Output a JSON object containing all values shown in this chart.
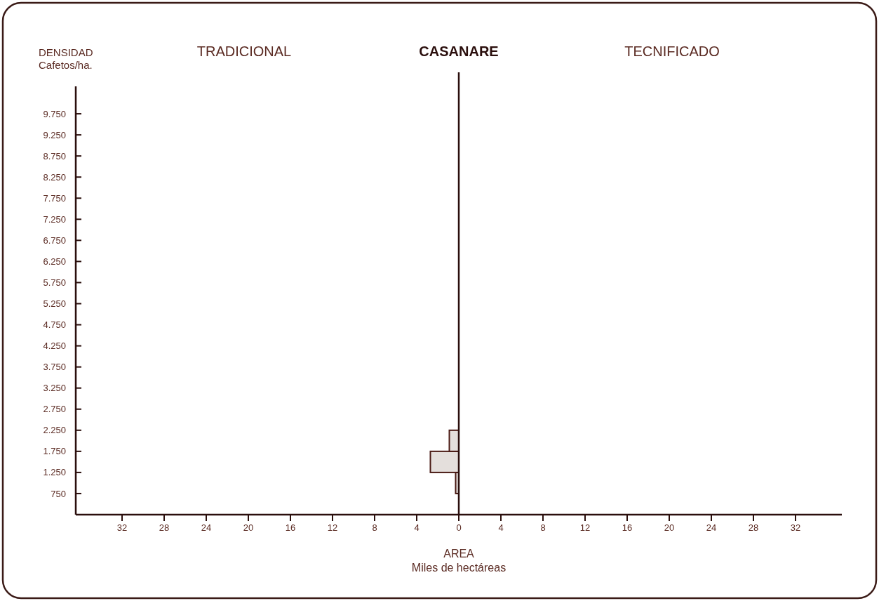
{
  "chart_data": {
    "type": "histogram",
    "orientation": "horizontal",
    "title": "CASANARE",
    "xlabel": "AREA\nMiles de hectáreas",
    "ylabel": "DENSIDAD\nCafetos/ha.",
    "annotations": [
      "TRADICIONAL",
      "TECNIFICADO"
    ],
    "bins": [
      750,
      1250,
      1750,
      2250
    ],
    "values": [
      -0.3,
      -2.7,
      -0.9
    ],
    "color": "#e4dfdc",
    "xlim": [
      -36.4,
      36.4
    ],
    "xticks": [
      {
        "value": -32,
        "label": "32"
      },
      {
        "value": -28,
        "label": "28"
      },
      {
        "value": -24,
        "label": "24"
      },
      {
        "value": -20,
        "label": "20"
      },
      {
        "value": -16,
        "label": "16"
      },
      {
        "value": -12,
        "label": "12"
      },
      {
        "value": -8,
        "label": "8"
      },
      {
        "value": -4,
        "label": "4"
      },
      0,
      4,
      8,
      12,
      16,
      20,
      24,
      28,
      32
    ],
    "ylim": [
      250,
      10400
    ],
    "yticks": [
      750,
      {
        "value": 1250,
        "label": "1.250"
      },
      {
        "value": 1750,
        "label": "1.750"
      },
      {
        "value": 2250,
        "label": "2.250"
      },
      {
        "value": 2750,
        "label": "2.750"
      },
      {
        "value": 3250,
        "label": "3.250"
      },
      {
        "value": 3750,
        "label": "3.750"
      },
      {
        "value": 4250,
        "label": "4.250"
      },
      {
        "value": 4750,
        "label": "4.750"
      },
      {
        "value": 5250,
        "label": "5.250"
      },
      {
        "value": 5750,
        "label": "5.750"
      },
      {
        "value": 6250,
        "label": "6.250"
      },
      {
        "value": 6750,
        "label": "6.750"
      },
      {
        "value": 7250,
        "label": "7.250"
      },
      {
        "value": 7750,
        "label": "7.750"
      },
      {
        "value": 8250,
        "label": "8.250"
      },
      {
        "value": 8750,
        "label": "8.750"
      },
      {
        "value": 9250,
        "label": "9.250"
      },
      {
        "value": 9750,
        "label": "9.750"
      }
    ]
  }
}
